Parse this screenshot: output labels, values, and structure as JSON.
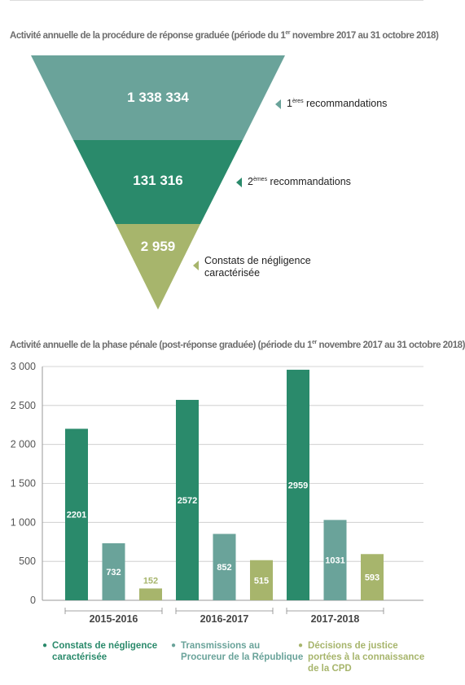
{
  "funnel": {
    "title_main": "Activité annuelle de la procédure de réponse graduée (période du 1",
    "title_sup": "er",
    "title_end": " novembre 2017 au 31 octobre 2018)",
    "levels": [
      {
        "value": "1 338 334",
        "label_pre": "1",
        "label_sup": "ères",
        "label_post": " recommandations",
        "color": "#6aa39a"
      },
      {
        "value": "131 316",
        "label_pre": "2",
        "label_sup": "èmes",
        "label_post": " recommandations",
        "color": "#2a8a6b"
      },
      {
        "value": "2 959",
        "label_pre": "Constats de négligence caractérisée",
        "label_sup": "",
        "label_post": "",
        "color": "#a7b56c"
      }
    ]
  },
  "chart_data": {
    "type": "bar",
    "title_main": "Activité annuelle de la phase pénale (post-réponse graduée) (période du 1",
    "title_sup": "er",
    "title_end": " novembre 2017 au 31 octobre 2018)",
    "categories": [
      "2015-2016",
      "2016-2017",
      "2017-2018"
    ],
    "ylim": [
      0,
      3000
    ],
    "yticks": [
      0,
      500,
      1000,
      1500,
      2000,
      2500,
      3000
    ],
    "ytick_labels": [
      "0",
      "500",
      "1 000",
      "1 500",
      "2 000",
      "2 500",
      "3 000"
    ],
    "grid": true,
    "series": [
      {
        "name": "Constats de négligence caractérisée",
        "values": [
          2201,
          2572,
          2959
        ],
        "color": "#2a8a6b",
        "label_color": "#ffffff"
      },
      {
        "name": "Transmissions au Procureur de la République",
        "values": [
          732,
          852,
          1031
        ],
        "color": "#6aa39a",
        "label_color": "#ffffff"
      },
      {
        "name": "Décisions de justice portées à la connaissance de la CPD",
        "values": [
          152,
          515,
          593
        ],
        "color": "#a7b56c",
        "label_color": "#ffffff"
      }
    ],
    "legend": [
      {
        "line1": "Constats de négligence",
        "line2": "caractérisée",
        "line3": "",
        "color": "#2a8a6b"
      },
      {
        "line1": "Transmissions au",
        "line2": "Procureur de la République",
        "line3": "",
        "color": "#6aa39a"
      },
      {
        "line1": "Décisions de justice",
        "line2": "portées à la connaissance",
        "line3": "de la CPD",
        "color": "#a7b56c"
      }
    ],
    "legend_position": "bottom"
  }
}
